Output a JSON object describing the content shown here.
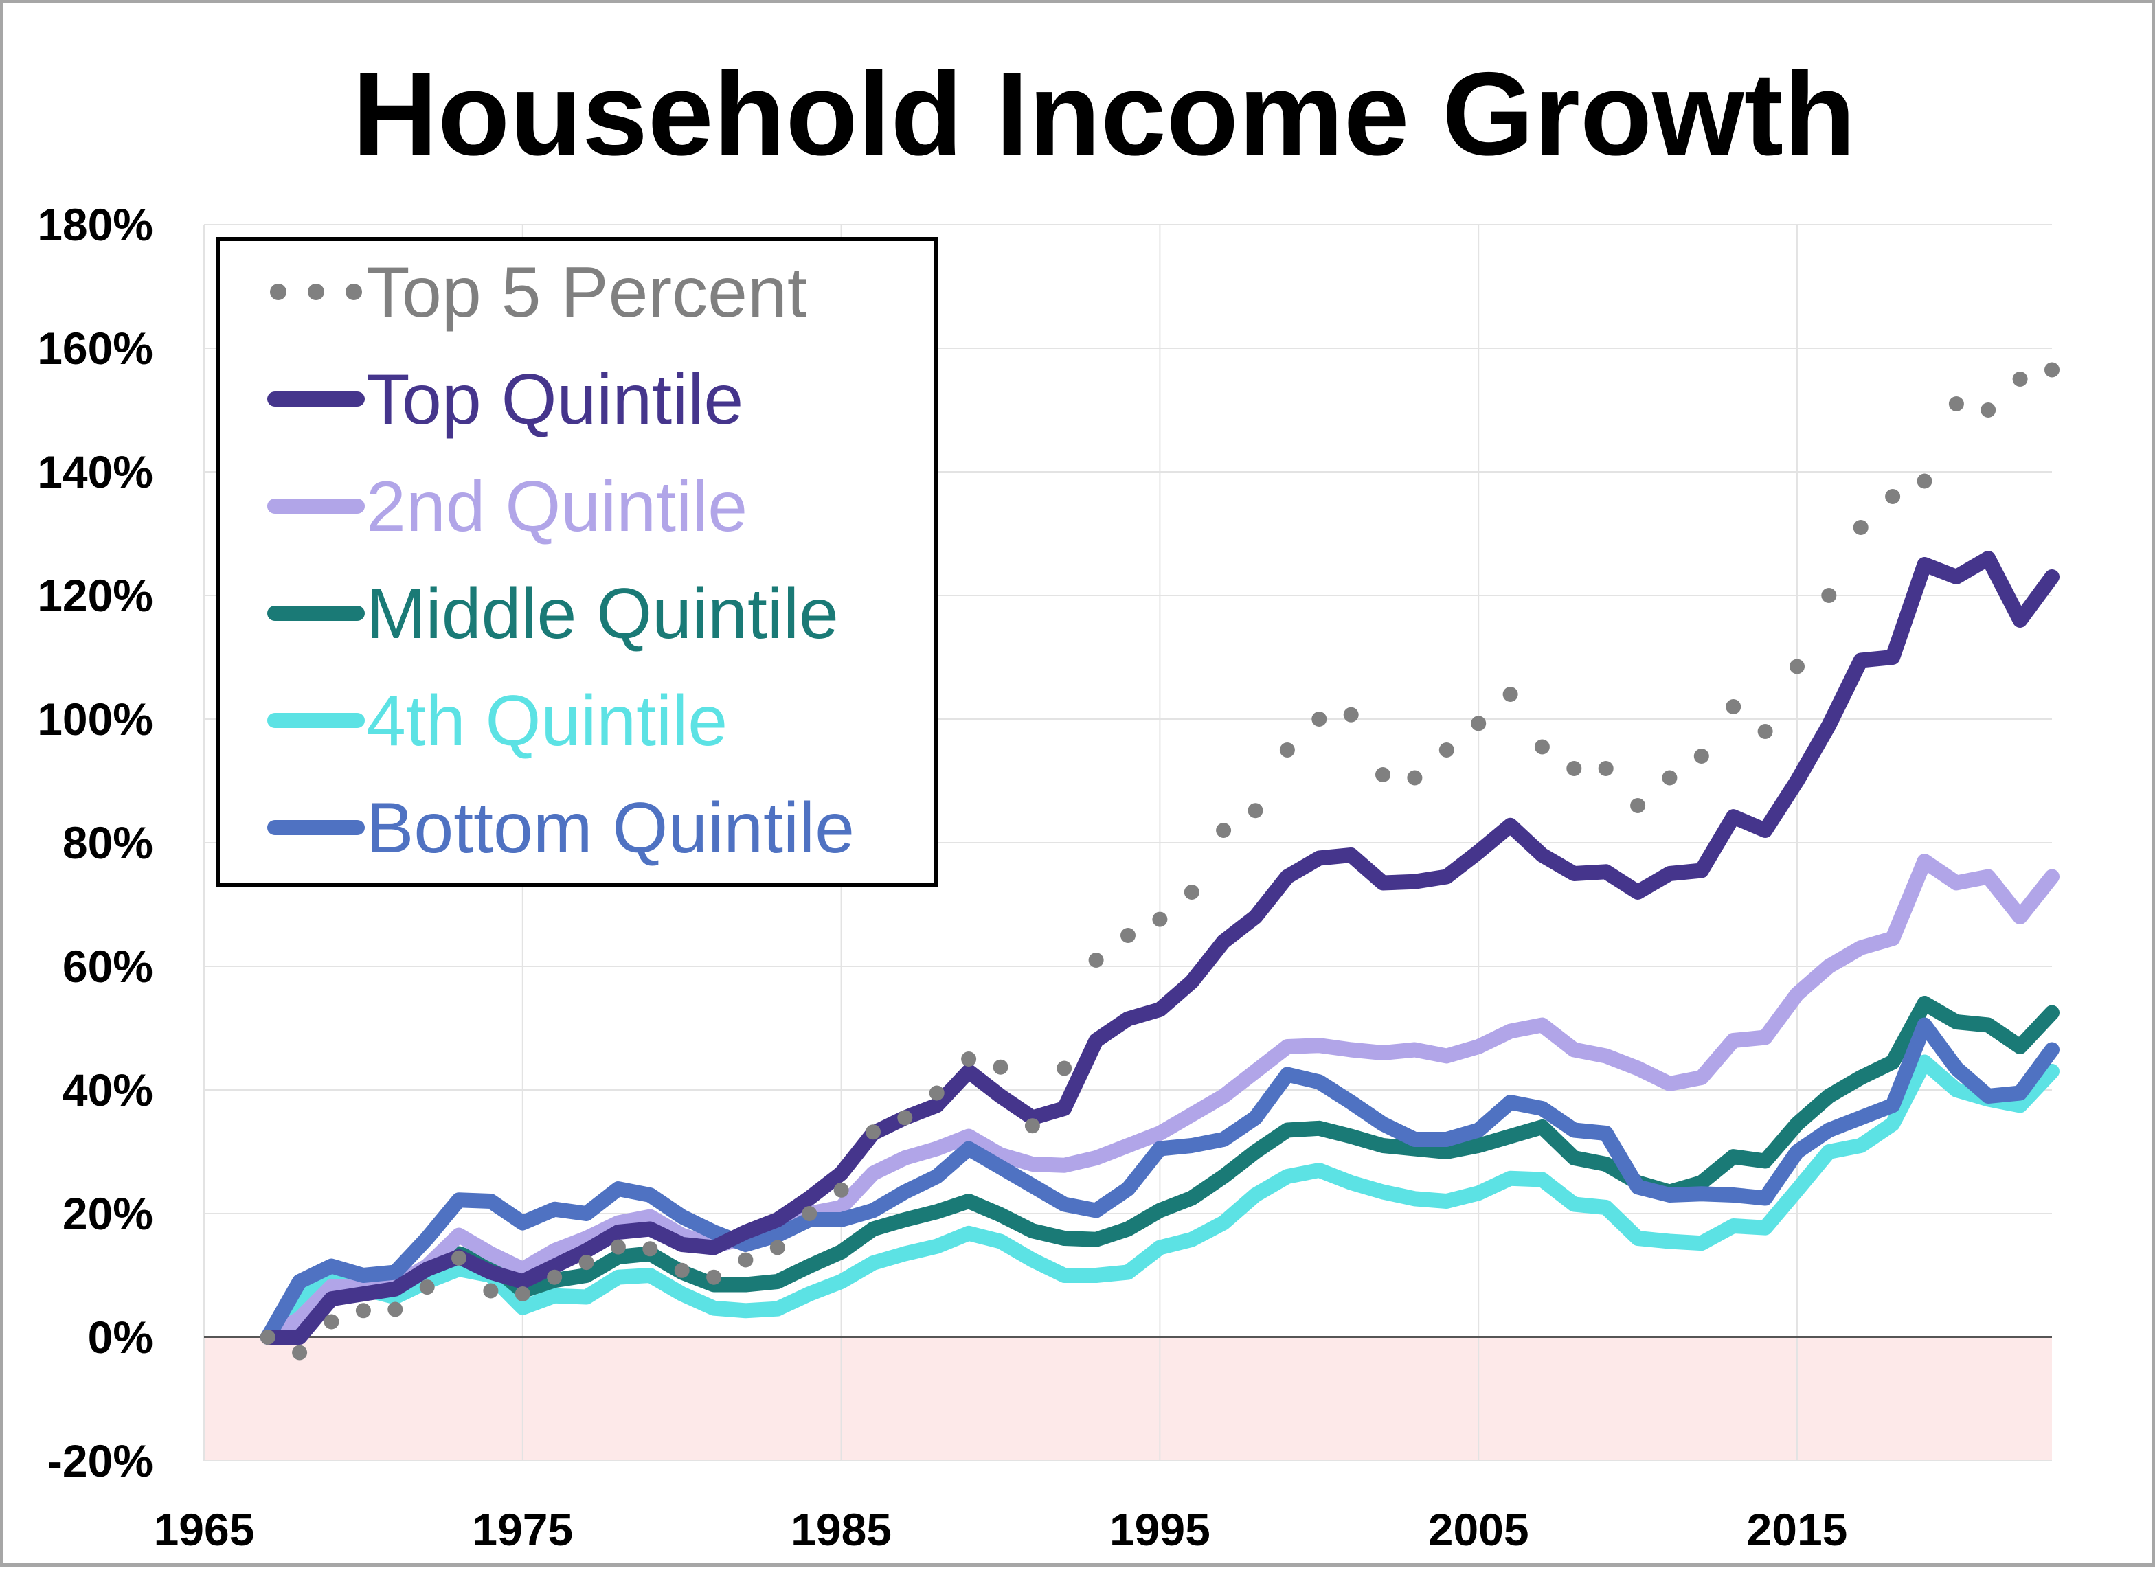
{
  "chart_data": {
    "type": "line",
    "title": "Household Income Growth",
    "xlabel": "",
    "ylabel": "",
    "xlim": [
      1965,
      2023
    ],
    "ylim": [
      -0.2,
      1.8
    ],
    "x_ticks": [
      "1965",
      "1975",
      "1985",
      "1995",
      "2005",
      "2015"
    ],
    "y_ticks": [
      "180%",
      "160%",
      "140%",
      "120%",
      "100%",
      "80%",
      "60%",
      "40%",
      "20%",
      "0%",
      "-20%"
    ],
    "grid": true,
    "negative_region_fill": "#fde9e9",
    "legend_position": "top-left",
    "x": [
      1967,
      1968,
      1969,
      1970,
      1971,
      1972,
      1973,
      1974,
      1975,
      1976,
      1977,
      1978,
      1979,
      1980,
      1981,
      1982,
      1983,
      1984,
      1985,
      1986,
      1987,
      1988,
      1989,
      1990,
      1991,
      1992,
      1993,
      1994,
      1995,
      1996,
      1997,
      1998,
      1999,
      2000,
      2001,
      2002,
      2003,
      2004,
      2005,
      2006,
      2007,
      2008,
      2009,
      2010,
      2011,
      2012,
      2013,
      2014,
      2015,
      2016,
      2017,
      2018,
      2019,
      2020,
      2021,
      2022,
      2023
    ],
    "series": [
      {
        "name": "Top 5 Percent",
        "color": "#808080",
        "style": "dotted",
        "values": [
          0.0,
          -0.025,
          0.025,
          0.043,
          0.045,
          0.081,
          0.128,
          0.075,
          0.07,
          0.097,
          0.121,
          0.146,
          0.143,
          0.108,
          0.097,
          0.125,
          0.145,
          0.2,
          0.238,
          0.332,
          0.355,
          0.395,
          0.45,
          0.437,
          0.342,
          0.435,
          0.61,
          0.65,
          0.676,
          0.72,
          0.82,
          0.852,
          0.95,
          1.0,
          1.007,
          0.91,
          0.905,
          0.95,
          0.993,
          1.04,
          0.955,
          0.92,
          0.92,
          0.86,
          0.905,
          0.94,
          1.02,
          0.98,
          1.085,
          1.2,
          1.31,
          1.36,
          1.385,
          1.51,
          1.5,
          1.55,
          1.565
        ]
      },
      {
        "name": "Top Quintile",
        "color": "#45358c",
        "style": "solid",
        "values": [
          0.0,
          0.0,
          0.062,
          0.07,
          0.078,
          0.11,
          0.13,
          0.105,
          0.09,
          0.115,
          0.14,
          0.17,
          0.175,
          0.15,
          0.145,
          0.17,
          0.19,
          0.225,
          0.265,
          0.33,
          0.355,
          0.375,
          0.43,
          0.39,
          0.355,
          0.37,
          0.48,
          0.515,
          0.53,
          0.575,
          0.64,
          0.68,
          0.745,
          0.775,
          0.78,
          0.735,
          0.737,
          0.745,
          0.785,
          0.828,
          0.78,
          0.75,
          0.753,
          0.72,
          0.75,
          0.755,
          0.842,
          0.82,
          0.9,
          0.99,
          1.095,
          1.1,
          1.25,
          1.23,
          1.26,
          1.16,
          1.23
        ]
      },
      {
        "name": "2nd Quintile",
        "color": "#b1a5e8",
        "style": "solid",
        "values": [
          0.0,
          0.03,
          0.082,
          0.08,
          0.085,
          0.115,
          0.165,
          0.135,
          0.11,
          0.14,
          0.16,
          0.185,
          0.195,
          0.165,
          0.148,
          0.16,
          0.175,
          0.2,
          0.21,
          0.265,
          0.29,
          0.305,
          0.325,
          0.295,
          0.28,
          0.278,
          0.29,
          0.31,
          0.33,
          0.36,
          0.39,
          0.43,
          0.47,
          0.472,
          0.465,
          0.46,
          0.465,
          0.455,
          0.47,
          0.495,
          0.505,
          0.465,
          0.455,
          0.435,
          0.41,
          0.42,
          0.48,
          0.485,
          0.555,
          0.6,
          0.63,
          0.645,
          0.77,
          0.735,
          0.745,
          0.68,
          0.745
        ]
      },
      {
        "name": "Middle Quintile",
        "color": "#1a7a76",
        "style": "solid",
        "values": [
          0.0,
          0.025,
          0.072,
          0.083,
          0.08,
          0.11,
          0.135,
          0.118,
          0.075,
          0.092,
          0.1,
          0.13,
          0.135,
          0.105,
          0.085,
          0.085,
          0.09,
          0.115,
          0.138,
          0.175,
          0.19,
          0.203,
          0.22,
          0.198,
          0.172,
          0.16,
          0.158,
          0.175,
          0.205,
          0.225,
          0.26,
          0.3,
          0.335,
          0.338,
          0.325,
          0.31,
          0.305,
          0.3,
          0.31,
          0.325,
          0.34,
          0.29,
          0.28,
          0.25,
          0.235,
          0.25,
          0.292,
          0.285,
          0.345,
          0.39,
          0.42,
          0.445,
          0.54,
          0.51,
          0.505,
          0.47,
          0.525
        ]
      },
      {
        "name": "4th Quintile",
        "color": "#5ce2e4",
        "style": "solid",
        "values": [
          0.0,
          0.065,
          0.09,
          0.078,
          0.065,
          0.09,
          0.11,
          0.1,
          0.048,
          0.067,
          0.065,
          0.097,
          0.1,
          0.07,
          0.047,
          0.043,
          0.046,
          0.07,
          0.09,
          0.12,
          0.135,
          0.147,
          0.168,
          0.155,
          0.125,
          0.1,
          0.1,
          0.105,
          0.145,
          0.158,
          0.185,
          0.23,
          0.26,
          0.27,
          0.25,
          0.235,
          0.224,
          0.22,
          0.233,
          0.257,
          0.255,
          0.215,
          0.21,
          0.16,
          0.155,
          0.152,
          0.18,
          0.177,
          0.238,
          0.3,
          0.31,
          0.345,
          0.445,
          0.4,
          0.385,
          0.375,
          0.43
        ]
      },
      {
        "name": "Bottom Quintile",
        "color": "#4f72c2",
        "style": "solid",
        "values": [
          0.0,
          0.09,
          0.115,
          0.1,
          0.105,
          0.16,
          0.222,
          0.22,
          0.185,
          0.207,
          0.2,
          0.24,
          0.23,
          0.195,
          0.17,
          0.15,
          0.165,
          0.19,
          0.19,
          0.205,
          0.235,
          0.26,
          0.305,
          0.275,
          0.245,
          0.215,
          0.205,
          0.24,
          0.305,
          0.31,
          0.32,
          0.355,
          0.425,
          0.413,
          0.38,
          0.345,
          0.32,
          0.32,
          0.335,
          0.38,
          0.37,
          0.335,
          0.33,
          0.243,
          0.23,
          0.232,
          0.23,
          0.225,
          0.3,
          0.335,
          0.355,
          0.375,
          0.505,
          0.435,
          0.39,
          0.395,
          0.465
        ]
      }
    ]
  }
}
